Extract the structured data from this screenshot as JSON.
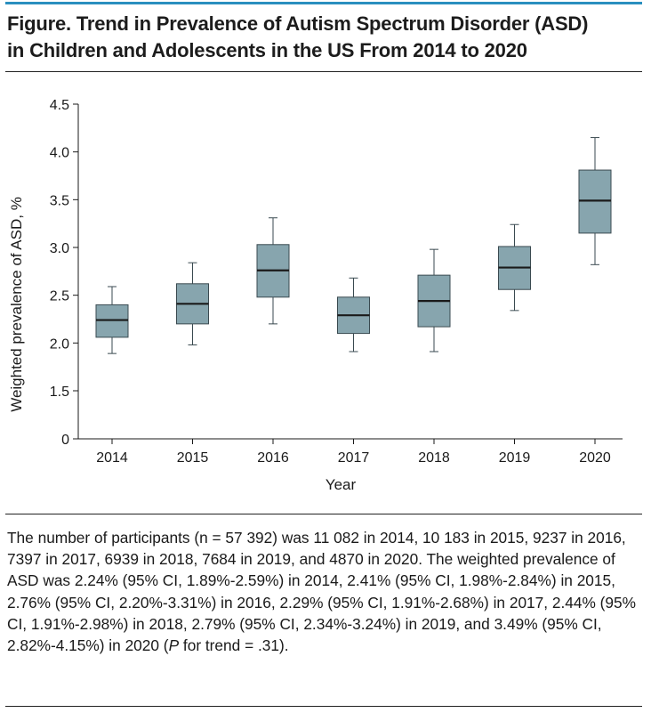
{
  "figure": {
    "title_line1": "Figure. Trend in Prevalence of Autism Spectrum Disorder (ASD)",
    "title_line2": "in Children and Adolescents in the US From 2014 to 2020",
    "caption_part1": "The number of participants (n = 57 392) was 11 082 in 2014, 10 183 in 2015, 9237 in 2016, 7397 in 2017, 6939 in 2018, 7684 in 2019, and 4870 in 2020. The weighted prevalence of ASD was 2.24% (95% CI, 1.89%-2.59%) in 2014, 2.41% (95% CI, 1.98%-2.84%) in 2015, 2.76% (95% CI, 2.20%-3.31%) in 2016, 2.29% (95% CI, 1.91%-2.68%) in 2017, 2.44% (95% CI, 1.91%-2.98%) in 2018, 2.79% (95% CI, 2.34%-3.24%) in 2019, and 3.49% (95% CI, 2.82%-4.15%) in 2020 (",
    "caption_italic": "P",
    "caption_part2": " for trend = .31)."
  },
  "colors": {
    "title_rule": "#2a8fbf",
    "box_fill": "#87a5ae",
    "box_stroke": "#3a4a50",
    "median": "#1a1a1a"
  },
  "chart_data": {
    "type": "box",
    "xlabel": "Year",
    "ylabel": "Weighted prevalence of ASD, %",
    "ylim": [
      0,
      4.5
    ],
    "yticks": [
      "0",
      "1.5",
      "2.0",
      "2.5",
      "3.0",
      "3.5",
      "4.0",
      "4.5"
    ],
    "ytick_values": [
      0,
      1.5,
      2.0,
      2.5,
      3.0,
      3.5,
      4.0,
      4.5
    ],
    "y_axis_break": true,
    "grid": false,
    "categories": [
      "2014",
      "2015",
      "2016",
      "2017",
      "2018",
      "2019",
      "2020"
    ],
    "boxes": [
      {
        "year": "2014",
        "whisker_low": 1.89,
        "q1": 2.06,
        "median": 2.24,
        "q3": 2.4,
        "whisker_high": 2.59
      },
      {
        "year": "2015",
        "whisker_low": 1.98,
        "q1": 2.2,
        "median": 2.41,
        "q3": 2.62,
        "whisker_high": 2.84
      },
      {
        "year": "2016",
        "whisker_low": 2.2,
        "q1": 2.48,
        "median": 2.76,
        "q3": 3.03,
        "whisker_high": 3.31
      },
      {
        "year": "2017",
        "whisker_low": 1.91,
        "q1": 2.1,
        "median": 2.29,
        "q3": 2.48,
        "whisker_high": 2.68
      },
      {
        "year": "2018",
        "whisker_low": 1.91,
        "q1": 2.17,
        "median": 2.44,
        "q3": 2.71,
        "whisker_high": 2.98
      },
      {
        "year": "2019",
        "whisker_low": 2.34,
        "q1": 2.56,
        "median": 2.79,
        "q3": 3.01,
        "whisker_high": 3.24
      },
      {
        "year": "2020",
        "whisker_low": 2.82,
        "q1": 3.15,
        "median": 3.49,
        "q3": 3.81,
        "whisker_high": 4.15
      }
    ]
  }
}
